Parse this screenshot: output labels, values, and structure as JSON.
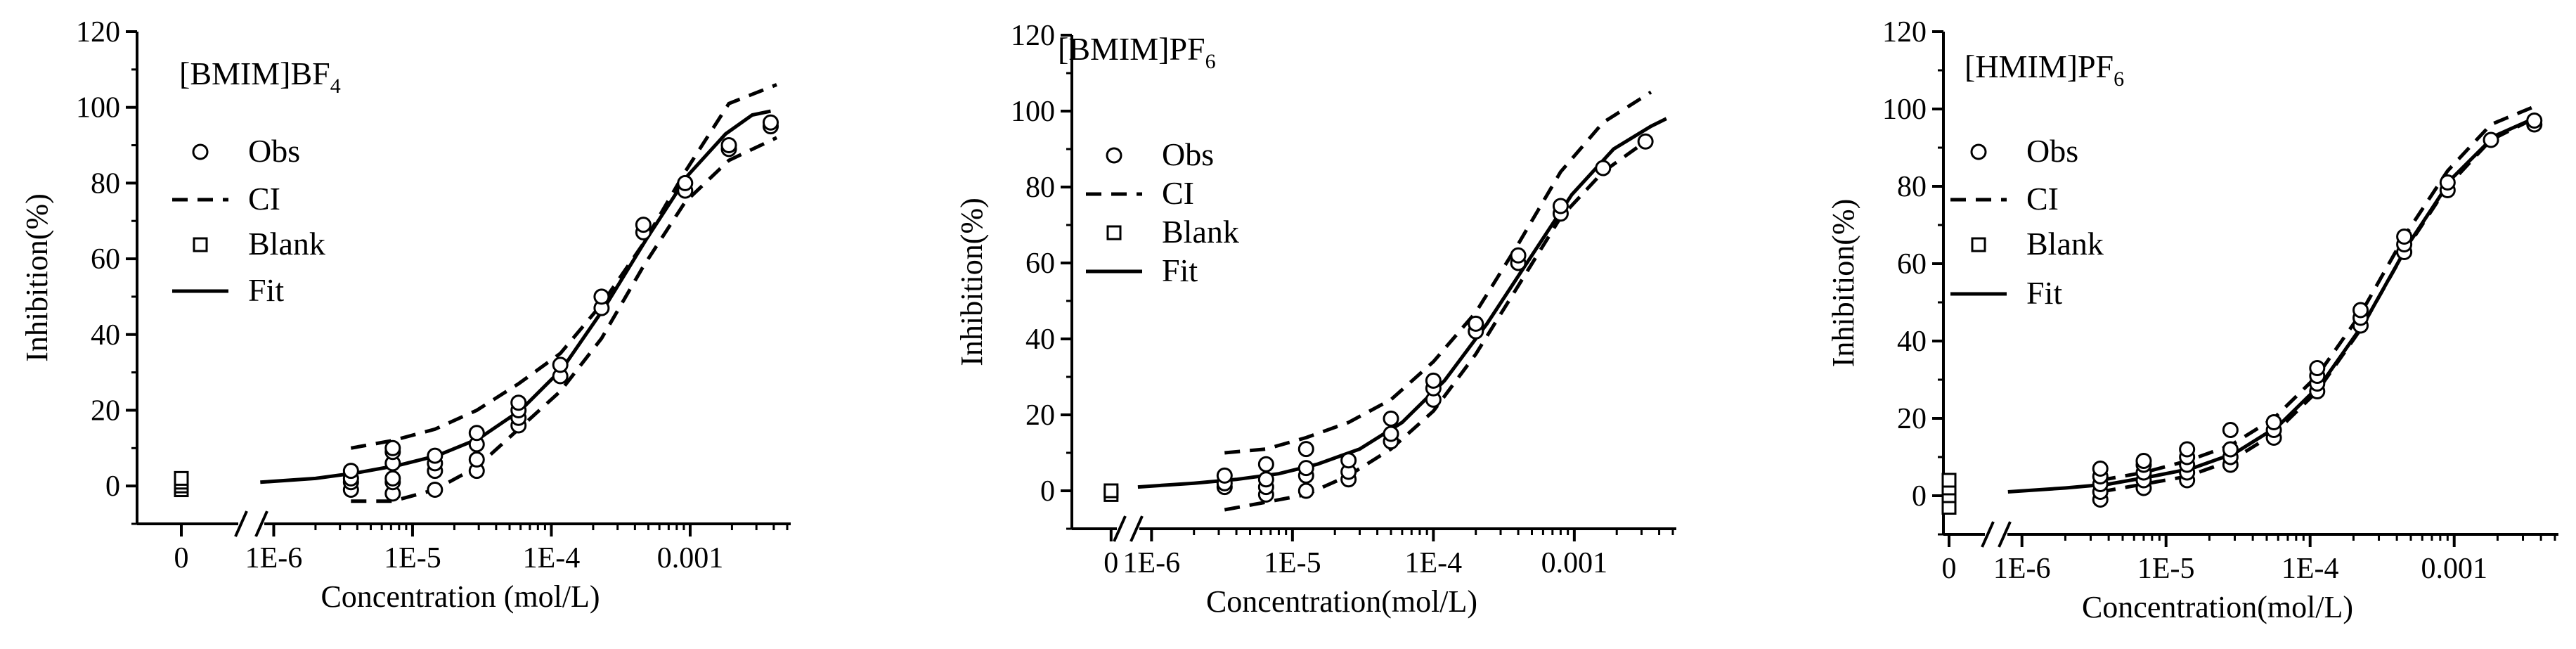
{
  "chart_data": [
    {
      "type": "scatter",
      "title": "[BMIM]BF",
      "title_subscript": "4",
      "xlabel": "Concentration (mol/L)",
      "ylabel": "Inhibition(%)",
      "xscale": "log",
      "xlim": [
        5e-07,
        0.005
      ],
      "ylim": [
        -10,
        120
      ],
      "yticks": [
        "0",
        "20",
        "40",
        "60",
        "80",
        "100",
        "120"
      ],
      "xticks": [
        "0",
        "1E-6",
        "1E-5",
        "1E-4",
        "0.001"
      ],
      "legend": [
        "Obs",
        "CI",
        "Blank",
        "Fit"
      ],
      "legend_position": "left",
      "series": [
        {
          "name": "Obs",
          "marker": "circle",
          "points": [
            [
              3.6e-06,
              -1
            ],
            [
              3.6e-06,
              1
            ],
            [
              3.6e-06,
              2
            ],
            [
              3.6e-06,
              4
            ],
            [
              7.2e-06,
              -2
            ],
            [
              7.2e-06,
              1
            ],
            [
              7.2e-06,
              2
            ],
            [
              7.2e-06,
              6
            ],
            [
              7.2e-06,
              9
            ],
            [
              7.2e-06,
              10
            ],
            [
              1.45e-05,
              -1
            ],
            [
              1.45e-05,
              4
            ],
            [
              1.45e-05,
              6
            ],
            [
              1.45e-05,
              8
            ],
            [
              2.9e-05,
              4
            ],
            [
              2.9e-05,
              7
            ],
            [
              2.9e-05,
              11
            ],
            [
              2.9e-05,
              14
            ],
            [
              5.8e-05,
              16
            ],
            [
              5.8e-05,
              18
            ],
            [
              5.8e-05,
              20
            ],
            [
              5.8e-05,
              22
            ],
            [
              0.000116,
              29
            ],
            [
              0.000116,
              32
            ],
            [
              0.00023,
              47
            ],
            [
              0.00023,
              50
            ],
            [
              0.00046,
              67
            ],
            [
              0.00046,
              69
            ],
            [
              0.00092,
              78
            ],
            [
              0.00092,
              80
            ],
            [
              0.0019,
              89
            ],
            [
              0.0019,
              90
            ],
            [
              0.0038,
              95
            ],
            [
              0.0038,
              96
            ]
          ]
        },
        {
          "name": "CI",
          "line": "dashed",
          "bands": [
            {
              "x": [
                3.6e-06,
                7.2e-06,
                1.45e-05,
                2.9e-05,
                5.8e-05,
                0.000116,
                0.00023,
                0.00046,
                0.00092,
                0.0019,
                0.0042
              ],
              "y": [
                10,
                12,
                15,
                20,
                27,
                35,
                48,
                64,
                83,
                101,
                106
              ]
            },
            {
              "x": [
                3.6e-06,
                7.2e-06,
                1.45e-05,
                2.9e-05,
                5.8e-05,
                0.000116,
                0.00023,
                0.00046,
                0.00092,
                0.0019,
                0.0042
              ],
              "y": [
                -4,
                -4,
                -1,
                5,
                15,
                25,
                39,
                58,
                75,
                86,
                92
              ]
            }
          ]
        },
        {
          "name": "Blank",
          "marker": "square",
          "x_category": "0",
          "values": [
            -1,
            0,
            1,
            2
          ]
        },
        {
          "name": "Fit",
          "line": "solid",
          "x": [
            8e-07,
            2e-06,
            4e-06,
            8e-06,
            1.5e-05,
            3e-05,
            6e-05,
            0.00012,
            0.00024,
            0.00048,
            0.00096,
            0.0018,
            0.0028,
            0.0038
          ],
          "y": [
            1,
            2,
            3.5,
            5.5,
            8,
            12.5,
            20,
            31,
            47,
            65,
            82,
            93,
            98,
            99
          ]
        }
      ]
    },
    {
      "type": "scatter",
      "title": "[BMIM]PF",
      "title_subscript": "6",
      "xlabel": "Concentration(mol/L)",
      "ylabel": "Inhibition(%)",
      "xscale": "log",
      "xlim": [
        5e-07,
        0.005
      ],
      "ylim": [
        -10,
        120
      ],
      "yticks": [
        "0",
        "20",
        "40",
        "60",
        "80",
        "100",
        "120"
      ],
      "xticks": [
        "0",
        "1E-6",
        "1E-5",
        "1E-4",
        "0.001"
      ],
      "legend": [
        "Obs",
        "CI",
        "Blank",
        "Fit"
      ],
      "legend_position": "left",
      "series": [
        {
          "name": "Obs",
          "marker": "circle",
          "points": [
            [
              3.3e-06,
              1
            ],
            [
              3.3e-06,
              2
            ],
            [
              3.3e-06,
              4
            ],
            [
              6.5e-06,
              -1
            ],
            [
              6.5e-06,
              1
            ],
            [
              6.5e-06,
              3
            ],
            [
              6.5e-06,
              7
            ],
            [
              1.25e-05,
              0
            ],
            [
              1.25e-05,
              4
            ],
            [
              1.25e-05,
              6
            ],
            [
              1.25e-05,
              11
            ],
            [
              2.5e-05,
              3
            ],
            [
              2.5e-05,
              5
            ],
            [
              2.5e-05,
              8
            ],
            [
              5e-05,
              13
            ],
            [
              5e-05,
              15
            ],
            [
              5e-05,
              19
            ],
            [
              0.0001,
              24
            ],
            [
              0.0001,
              27
            ],
            [
              0.0001,
              29
            ],
            [
              0.0002,
              42
            ],
            [
              0.0002,
              44
            ],
            [
              0.0004,
              60
            ],
            [
              0.0004,
              62
            ],
            [
              0.0008,
              73
            ],
            [
              0.0008,
              75
            ],
            [
              0.0016,
              85
            ],
            [
              0.0032,
              92
            ]
          ]
        },
        {
          "name": "CI",
          "line": "dashed",
          "bands": [
            {
              "x": [
                3.3e-06,
                6.5e-06,
                1.25e-05,
                2.5e-05,
                5e-05,
                0.0001,
                0.0002,
                0.0004,
                0.0008,
                0.0016,
                0.0035
              ],
              "y": [
                10,
                11,
                14,
                18,
                24,
                34,
                47,
                65,
                84,
                97,
                105
              ]
            },
            {
              "x": [
                3.3e-06,
                6.5e-06,
                1.25e-05,
                2.5e-05,
                5e-05,
                0.0001,
                0.0002,
                0.0004,
                0.0008,
                0.0016,
                0.0035
              ],
              "y": [
                -5,
                -3,
                -1,
                4,
                11,
                21,
                36,
                54,
                72,
                84,
                93
              ]
            }
          ]
        },
        {
          "name": "Blank",
          "marker": "square",
          "x_category": "0",
          "values": [
            -1,
            0
          ]
        },
        {
          "name": "Fit",
          "line": "solid",
          "x": [
            8e-07,
            2e-06,
            4e-06,
            8e-06,
            1.5e-05,
            3e-05,
            6e-05,
            0.00012,
            0.00024,
            0.00048,
            0.00096,
            0.0019,
            0.0035,
            0.0045
          ],
          "y": [
            1,
            2,
            3,
            4.5,
            7,
            11,
            18,
            29,
            44,
            61,
            78,
            90,
            96,
            98
          ]
        }
      ]
    },
    {
      "type": "scatter",
      "title": "[HMIM]PF",
      "title_subscript": "6",
      "xlabel": "Concentration(mol/L)",
      "ylabel": "Inhibition(%)",
      "xscale": "log",
      "xlim": [
        5e-07,
        0.005
      ],
      "ylim": [
        -10,
        120
      ],
      "yticks": [
        "0",
        "20",
        "40",
        "60",
        "80",
        "100",
        "120"
      ],
      "xticks": [
        "0",
        "1E-6",
        "1E-5",
        "1E-4",
        "0.001"
      ],
      "legend": [
        "Obs",
        "CI",
        "Blank",
        "Fit"
      ],
      "legend_position": "left",
      "series": [
        {
          "name": "Obs",
          "marker": "circle",
          "points": [
            [
              3.5e-06,
              -1
            ],
            [
              3.5e-06,
              1
            ],
            [
              3.5e-06,
              3
            ],
            [
              3.5e-06,
              5
            ],
            [
              3.5e-06,
              7
            ],
            [
              7e-06,
              2
            ],
            [
              7e-06,
              4
            ],
            [
              7e-06,
              6
            ],
            [
              7e-06,
              8
            ],
            [
              7e-06,
              9
            ],
            [
              1.4e-05,
              4
            ],
            [
              1.4e-05,
              6
            ],
            [
              1.4e-05,
              8
            ],
            [
              1.4e-05,
              10
            ],
            [
              1.4e-05,
              12
            ],
            [
              2.8e-05,
              8
            ],
            [
              2.8e-05,
              10
            ],
            [
              2.8e-05,
              12
            ],
            [
              2.8e-05,
              17
            ],
            [
              5.6e-05,
              15
            ],
            [
              5.6e-05,
              17
            ],
            [
              5.6e-05,
              19
            ],
            [
              0.000112,
              27
            ],
            [
              0.000112,
              29
            ],
            [
              0.000112,
              31
            ],
            [
              0.000112,
              33
            ],
            [
              0.000224,
              44
            ],
            [
              0.000224,
              46
            ],
            [
              0.000224,
              48
            ],
            [
              0.00045,
              63
            ],
            [
              0.00045,
              65
            ],
            [
              0.00045,
              67
            ],
            [
              0.0009,
              79
            ],
            [
              0.0009,
              81
            ],
            [
              0.0018,
              92
            ],
            [
              0.0036,
              96
            ],
            [
              0.0036,
              97
            ]
          ]
        },
        {
          "name": "CI",
          "line": "dashed",
          "bands": [
            {
              "x": [
                3.5e-06,
                7e-06,
                1.4e-05,
                2.8e-05,
                5.6e-05,
                0.000112,
                0.000224,
                0.00045,
                0.0009,
                0.0018,
                0.0038
              ],
              "y": [
                4,
                6,
                9,
                13,
                20,
                31,
                47,
                67,
                84,
                96,
                101
              ]
            },
            {
              "x": [
                3.5e-06,
                7e-06,
                1.4e-05,
                2.8e-05,
                5.6e-05,
                0.000112,
                0.000224,
                0.00045,
                0.0009,
                0.0018,
                0.0038
              ],
              "y": [
                1,
                3,
                5,
                9,
                16,
                27,
                43,
                63,
                80,
                92,
                98
              ]
            }
          ]
        },
        {
          "name": "Blank",
          "marker": "square",
          "x_category": "0",
          "values": [
            -3,
            0,
            2,
            4
          ]
        },
        {
          "name": "Fit",
          "line": "solid",
          "x": [
            8e-07,
            2e-06,
            4e-06,
            8e-06,
            1.5e-05,
            3e-05,
            6e-05,
            0.00012,
            0.00024,
            0.00048,
            0.00096,
            0.0019,
            0.0038
          ],
          "y": [
            1,
            2,
            3,
            5,
            7,
            11,
            18,
            29,
            45,
            65,
            82,
            93,
            98
          ]
        }
      ]
    }
  ]
}
